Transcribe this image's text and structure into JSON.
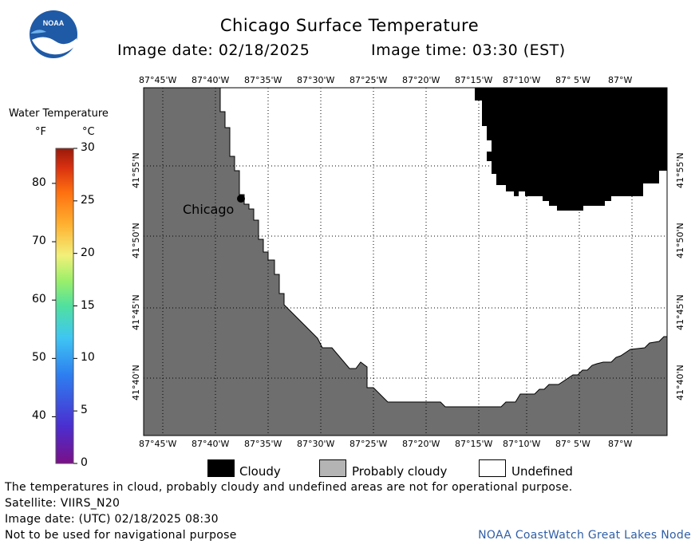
{
  "header": {
    "title": "Chicago Surface Temperature",
    "image_date_label": "Image date: 02/18/2025",
    "image_time_label": "Image time: 03:30 (EST)",
    "logo_text": "NOAA"
  },
  "colorbar": {
    "title": "Water Temperature",
    "unit_f": "°F",
    "unit_c": "°C",
    "f_ticks": [
      "80",
      "70",
      "60",
      "50",
      "40"
    ],
    "c_ticks": [
      "30",
      "25",
      "20",
      "15",
      "10",
      "5",
      "0"
    ]
  },
  "map": {
    "lon_labels": [
      "87°45'W",
      "87°40'W",
      "87°35'W",
      "87°30'W",
      "87°25'W",
      "87°20'W",
      "87°15'W",
      "87°10'W",
      "87° 5'W",
      "87°W"
    ],
    "lat_labels": [
      "41°55'N",
      "41°50'N",
      "41°45'N",
      "41°40'N"
    ],
    "city_label": "Chicago",
    "colors": {
      "land": "#6e6e6e",
      "water_undefined": "#ffffff",
      "cloudy": "#000000",
      "grid": "#000000"
    }
  },
  "legend": {
    "cloudy": "Cloudy",
    "probably_cloudy": "Probably cloudy",
    "undefined": "Undefined",
    "colors": {
      "cloudy": "#000000",
      "probably_cloudy": "#b4b4b4",
      "undefined": "#ffffff"
    }
  },
  "footer": {
    "note": "The temperatures in cloud, probably cloudy and undefined areas are not for operational purpose.",
    "satellite": "Satellite: VIIRS_N20",
    "utc_date": "Image date: (UTC) 02/18/2025  08:30",
    "nav_warning": "Not to be used for navigational purpose",
    "credit": "NOAA CoastWatch Great Lakes Node",
    "credit_color": "#2f5fa7"
  }
}
